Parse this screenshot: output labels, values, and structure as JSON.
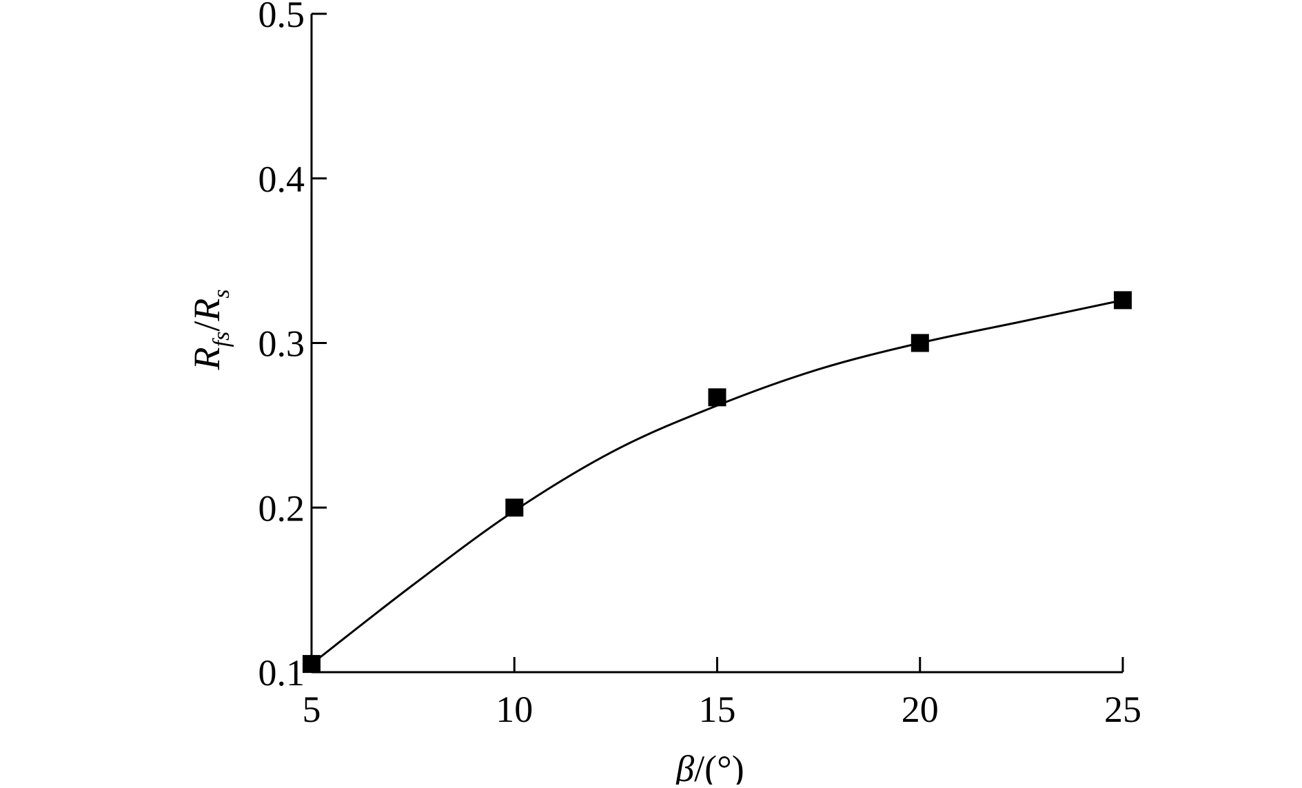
{
  "chart_data": {
    "type": "scatter",
    "title": "",
    "xlabel": "β/(°)",
    "ylabel": {
      "main": "R",
      "sub1": "fs",
      "slash": "/",
      "main2": "R",
      "sub2": "s"
    },
    "xlim": [
      5,
      25
    ],
    "ylim": [
      0.1,
      0.5
    ],
    "x_ticks": [
      {
        "value": 5,
        "label": "5"
      },
      {
        "value": 10,
        "label": "10"
      },
      {
        "value": 15,
        "label": "15"
      },
      {
        "value": 20,
        "label": "20"
      },
      {
        "value": 25,
        "label": "25"
      }
    ],
    "y_ticks": [
      {
        "value": 0.1,
        "label": "0.1"
      },
      {
        "value": 0.2,
        "label": "0.2"
      },
      {
        "value": 0.3,
        "label": "0.3"
      },
      {
        "value": 0.4,
        "label": "0.4"
      },
      {
        "value": 0.5,
        "label": "0.5"
      }
    ],
    "series": [
      {
        "marker": "square",
        "color": "#000000",
        "points": [
          {
            "x": 5,
            "y": 0.105
          },
          {
            "x": 10,
            "y": 0.2
          },
          {
            "x": 15,
            "y": 0.267
          },
          {
            "x": 20,
            "y": 0.3
          },
          {
            "x": 25,
            "y": 0.326
          }
        ]
      }
    ],
    "fit_curve": {
      "style": "smooth",
      "color": "#000000",
      "points": [
        {
          "x": 5,
          "y": 0.105
        },
        {
          "x": 7.5,
          "y": 0.153
        },
        {
          "x": 10,
          "y": 0.198
        },
        {
          "x": 12.5,
          "y": 0.235
        },
        {
          "x": 15,
          "y": 0.262
        },
        {
          "x": 17.5,
          "y": 0.284
        },
        {
          "x": 20,
          "y": 0.3
        },
        {
          "x": 22.5,
          "y": 0.313
        },
        {
          "x": 25,
          "y": 0.326
        }
      ]
    },
    "grid": false,
    "legend": "none"
  }
}
